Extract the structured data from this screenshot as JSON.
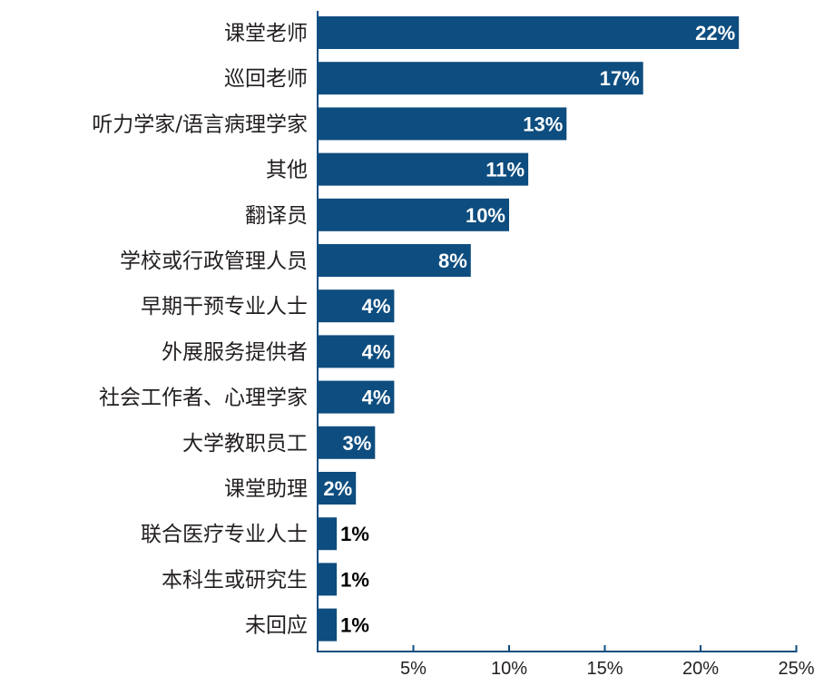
{
  "chart_data": {
    "type": "bar",
    "orientation": "horizontal",
    "categories": [
      "课堂老师",
      "巡回老师",
      "听力学家/语言病理学家",
      "其他",
      "翻译员",
      "学校或行政管理人员",
      "早期干预专业人士",
      "外展服务提供者",
      "社会工作者、心理学家",
      "大学教职员工",
      "课堂助理",
      "联合医疗专业人士",
      "本科生或研究生",
      "未回应"
    ],
    "values": [
      22,
      17,
      13,
      11,
      10,
      8,
      4,
      4,
      4,
      3,
      2,
      1,
      1,
      1
    ],
    "value_labels": [
      "22%",
      "17%",
      "13%",
      "11%",
      "10%",
      "8%",
      "4%",
      "4%",
      "4%",
      "3%",
      "2%",
      "1%",
      "1%",
      "1%"
    ],
    "xlim": [
      0,
      25
    ],
    "xticks": [
      5,
      10,
      15,
      20,
      25
    ],
    "xtick_labels": [
      "5%",
      "10%",
      "15%",
      "20%",
      "25%"
    ],
    "title": "",
    "xlabel": "",
    "ylabel": "",
    "grid": false,
    "legend": "none",
    "colors": {
      "bar": "#0e4d7f",
      "axis": "#0e4d7f",
      "label_inside": "#ffffff",
      "label_outside": "#000000",
      "text": "#231f20"
    }
  }
}
